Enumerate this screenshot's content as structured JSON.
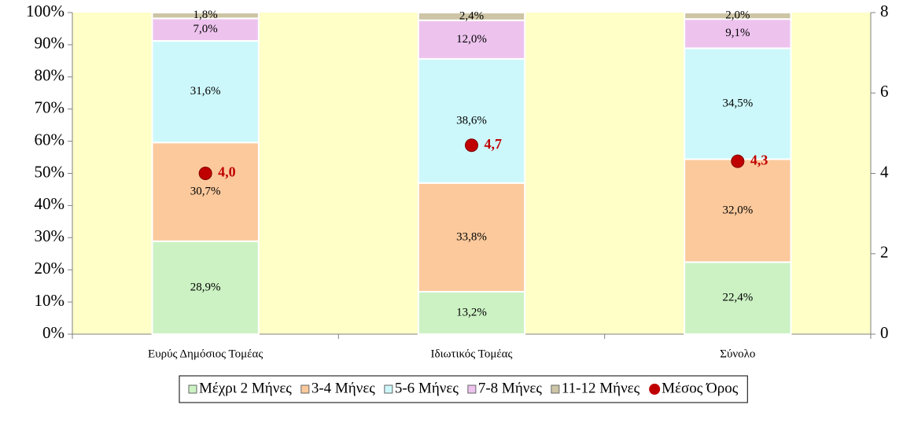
{
  "chart_data": {
    "type": "bar",
    "stacked": true,
    "categories": [
      "Ευρύς Δημόσιος Τομέας",
      "Ιδιωτικός Τομέας",
      "Σύνολο"
    ],
    "series": [
      {
        "name": "Μέχρι 2 Μήνες",
        "color": "#ccf2c4",
        "values": [
          28.9,
          13.2,
          22.4
        ],
        "value_labels": [
          "28,9%",
          "13,2%",
          "22,4%"
        ]
      },
      {
        "name": "3-4 Μήνες",
        "color": "#fbc99c",
        "values": [
          30.7,
          33.8,
          32.0
        ],
        "value_labels": [
          "30,7%",
          "33,8%",
          "32,0%"
        ]
      },
      {
        "name": "5-6 Μήνες",
        "color": "#cdf8fb",
        "values": [
          31.6,
          38.6,
          34.5
        ],
        "value_labels": [
          "31,6%",
          "38,6%",
          "34,5%"
        ]
      },
      {
        "name": "7-8 Μήνες",
        "color": "#edc3ee",
        "values": [
          7.0,
          12.0,
          9.1
        ],
        "value_labels": [
          "7,0%",
          "12,0%",
          "9,1%"
        ]
      },
      {
        "name": "11-12 Μήνες",
        "color": "#cdc5a5",
        "values": [
          1.8,
          2.4,
          2.0
        ],
        "value_labels": [
          "1,8%",
          "2,4%",
          "2,0%"
        ]
      },
      {
        "name": "Μέσος Όρος",
        "color": "#c00000",
        "type": "scatter",
        "axis": "y2",
        "values": [
          4.0,
          4.7,
          4.3
        ],
        "value_labels": [
          "4,0",
          "4,7",
          "4,3"
        ]
      }
    ],
    "ylim": [
      0,
      100
    ],
    "yticks": [
      {
        "value": 0,
        "label": "0%"
      },
      {
        "value": 10,
        "label": "10%"
      },
      {
        "value": 20,
        "label": "20%"
      },
      {
        "value": 30,
        "label": "30%"
      },
      {
        "value": 40,
        "label": "40%"
      },
      {
        "value": 50,
        "label": "50%"
      },
      {
        "value": 60,
        "label": "60%"
      },
      {
        "value": 70,
        "label": "70%"
      },
      {
        "value": 80,
        "label": "80%"
      },
      {
        "value": 90,
        "label": "90%"
      },
      {
        "value": 100,
        "label": "100%"
      }
    ],
    "y2lim": [
      0,
      8
    ],
    "y2ticks": [
      0,
      2,
      4,
      6,
      8
    ],
    "background": "#ffffc8",
    "legend": "bottom"
  }
}
